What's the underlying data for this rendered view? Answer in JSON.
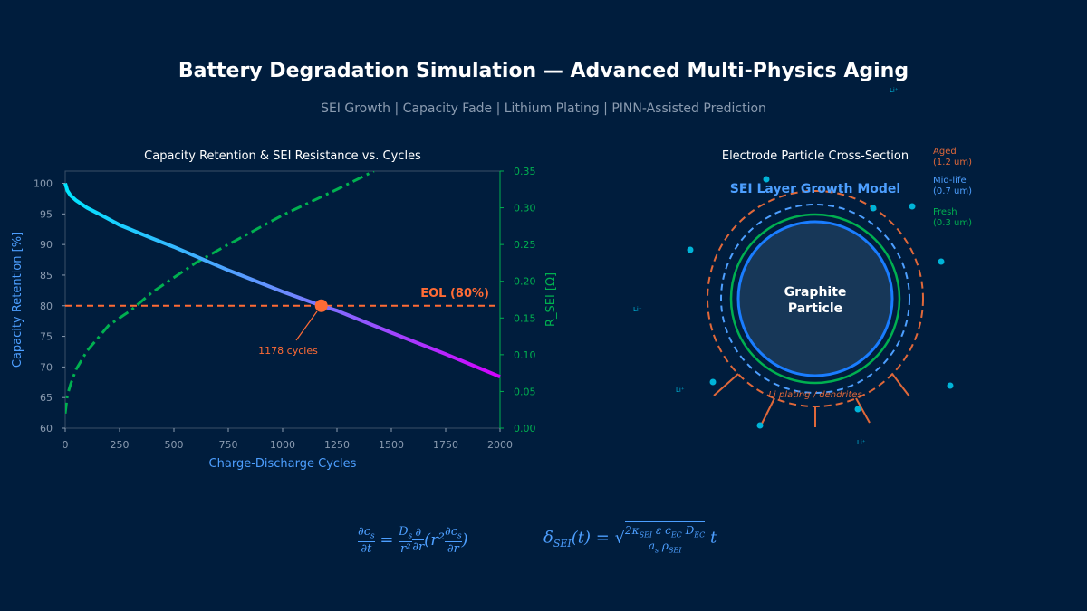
{
  "header": {
    "title": "Battery Degradation Simulation — Advanced Multi-Physics Aging",
    "subtitle": "SEI Growth  |  Capacity Fade  |  Lithium Plating  |  PINN-Assisted Prediction"
  },
  "chart_data": [
    {
      "type": "line",
      "title": "Capacity Retention & SEI Resistance vs. Cycles",
      "xlabel": "Charge-Discharge Cycles",
      "ylabel": "Capacity Retention [%]",
      "y2label": "R_SEI [Ω]",
      "xlim": [
        0,
        2000
      ],
      "ylim": [
        60,
        102
      ],
      "y2lim": [
        0,
        0.35
      ],
      "xticks": [
        "0",
        "250",
        "500",
        "750",
        "1000",
        "1250",
        "1500",
        "1750",
        "2000"
      ],
      "yticks": [
        "60",
        "65",
        "70",
        "75",
        "80",
        "85",
        "90",
        "95",
        "100"
      ],
      "y2ticks": [
        "0.00",
        "0.05",
        "0.10",
        "0.15",
        "0.20",
        "0.25",
        "0.30",
        "0.35"
      ],
      "grid": false,
      "series": [
        {
          "axis": "left",
          "color_start": "#00e5ff",
          "color_end": "#d400ff",
          "x": [
            0,
            10,
            25,
            50,
            100,
            150,
            250,
            400,
            500,
            750,
            1000,
            1178,
            1250,
            1500,
            1750,
            2000
          ],
          "y": [
            100,
            98.8,
            98,
            97.2,
            96,
            95.1,
            93.2,
            91,
            89.6,
            85.8,
            82.3,
            80,
            79.2,
            75.6,
            72.1,
            68.4
          ]
        },
        {
          "axis": "right",
          "color": "#00b050",
          "style": "dash-dot",
          "x": [
            0,
            10,
            25,
            50,
            100,
            200,
            300,
            400,
            500,
            600,
            750,
            1000,
            1250,
            1420
          ],
          "y": [
            0.02,
            0.045,
            0.06,
            0.08,
            0.105,
            0.14,
            0.16,
            0.185,
            0.205,
            0.225,
            0.25,
            0.29,
            0.325,
            0.35
          ]
        }
      ],
      "reference_line": {
        "y": 80,
        "label": "EOL (80%)",
        "color": "#ff6b35"
      },
      "annotation": {
        "x": 1178,
        "y": 80,
        "text": "1178 cycles",
        "color": "#ff6b35"
      }
    }
  ],
  "diagram": {
    "title": "Electrode Particle Cross-Section",
    "heading": "SEI Layer Growth Model",
    "core_label_1": "Graphite",
    "core_label_2": "Particle",
    "aged_1": "Aged",
    "aged_2": "(1.2 um)",
    "mid_1": "Mid-life",
    "mid_2": "(0.7 um)",
    "fresh_1": "Fresh",
    "fresh_2": "(0.3 um)",
    "plating": "Li plating / dendrites",
    "ion_label": "Li⁺"
  },
  "equations": {
    "diffusion": "∂cₛ/∂t = (Dₛ/r²) ∂/∂r (r² ∂cₛ/∂r)",
    "sei": "δ_SEI(t) = √(2κ_SEI ε c_EC D_EC / (aₛ ρ_SEI) · t)"
  }
}
